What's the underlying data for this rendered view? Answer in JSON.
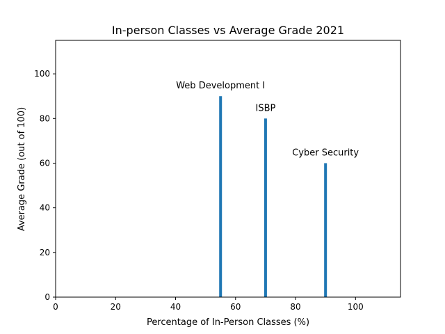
{
  "chart_data": {
    "type": "bar",
    "title": "In-person Classes vs Average Grade 2021",
    "xlabel": "Percentage of In-Person Classes (%)",
    "ylabel": "Average Grade (out of 100)",
    "xlim": [
      0,
      115
    ],
    "ylim": [
      0,
      115
    ],
    "xticks": [
      0,
      20,
      40,
      60,
      80,
      100
    ],
    "yticks": [
      0,
      20,
      40,
      60,
      80,
      100
    ],
    "grid": false,
    "bar_color": "#1f77b4",
    "points": [
      {
        "label": "Web Development I",
        "x": 55,
        "y": 90
      },
      {
        "label": "ISBP",
        "x": 70,
        "y": 80
      },
      {
        "label": "Cyber Security",
        "x": 90,
        "y": 60
      }
    ]
  }
}
